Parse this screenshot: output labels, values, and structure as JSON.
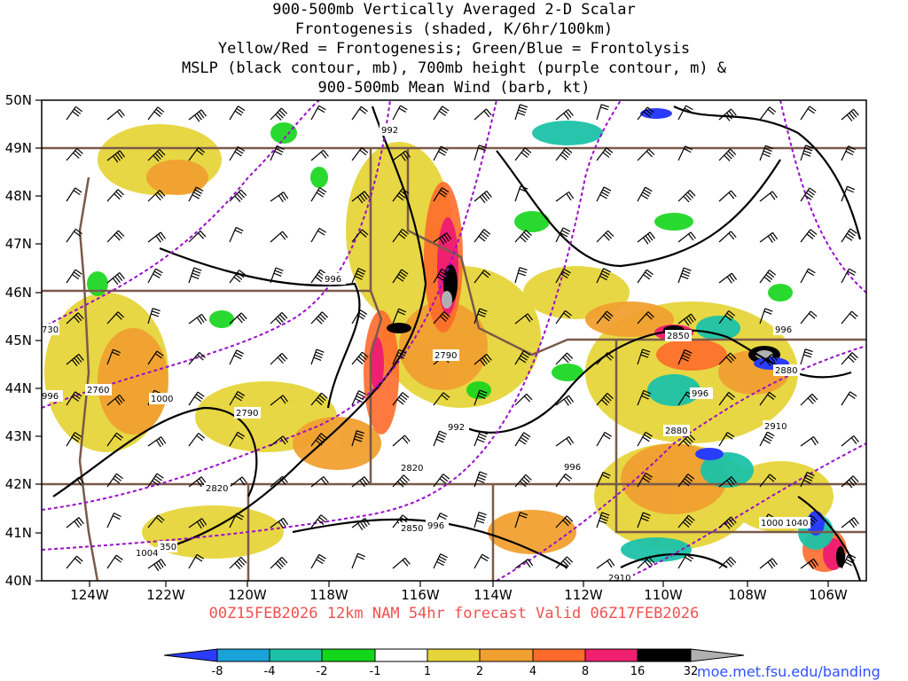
{
  "title_lines": [
    "900-500mb Vertically Averaged 2-D Scalar",
    "Frontogenesis (shaded, K/6hr/100km)",
    "Yellow/Red = Frontogenesis;  Green/Blue = Frontolysis",
    "MSLP (black contour, mb), 700mb height (purple contour, m) &",
    "900-500mb Mean Wind (barb, kt)"
  ],
  "lat_labels": [
    "50N",
    "49N",
    "48N",
    "47N",
    "46N",
    "45N",
    "44N",
    "43N",
    "42N",
    "41N",
    "40N"
  ],
  "lon_labels": [
    "124W",
    "122W",
    "120W",
    "118W",
    "116W",
    "114W",
    "112W",
    "110W",
    "108W",
    "106W"
  ],
  "valid_text": "00Z15FEB2026 12km NAM 54hr forecast Valid 06Z17FEB2026",
  "colorbar": {
    "labels": [
      "-8",
      "-4",
      "-2",
      "-1",
      "1",
      "2",
      "4",
      "8",
      "16",
      "32"
    ],
    "colors": [
      "#2a3cff",
      "#1aa3d8",
      "#1cc2a8",
      "#17c27a",
      "#13d51a",
      "#ffffff",
      "#e6d53a",
      "#f0a030",
      "#ff6b2b",
      "#f02070",
      "#000000",
      "#b0b0b0"
    ]
  },
  "mslp_labels": [
    {
      "text": "992"
    },
    {
      "text": "996"
    },
    {
      "text": "1000"
    },
    {
      "text": "992"
    },
    {
      "text": "996"
    },
    {
      "text": "996"
    },
    {
      "text": "996"
    },
    {
      "text": "996"
    },
    {
      "text": "1004"
    },
    {
      "text": "1000"
    },
    {
      "text": "996"
    }
  ],
  "height_labels": [
    {
      "text": "730"
    },
    {
      "text": "2760"
    },
    {
      "text": "2790"
    },
    {
      "text": "2790"
    },
    {
      "text": "2820"
    },
    {
      "text": "2820"
    },
    {
      "text": "2850"
    },
    {
      "text": "2850"
    },
    {
      "text": "2880"
    },
    {
      "text": "2880"
    },
    {
      "text": "2910"
    },
    {
      "text": "2910"
    },
    {
      "text": "1040"
    },
    {
      "text": "350"
    }
  ],
  "url": "moe.met.fsu.edu/banding",
  "colors": {
    "valid_text": "#f05050",
    "url": "#3050ff",
    "mslp": "#000000",
    "height": "#9a10c8",
    "border": "#7a5a4a"
  }
}
